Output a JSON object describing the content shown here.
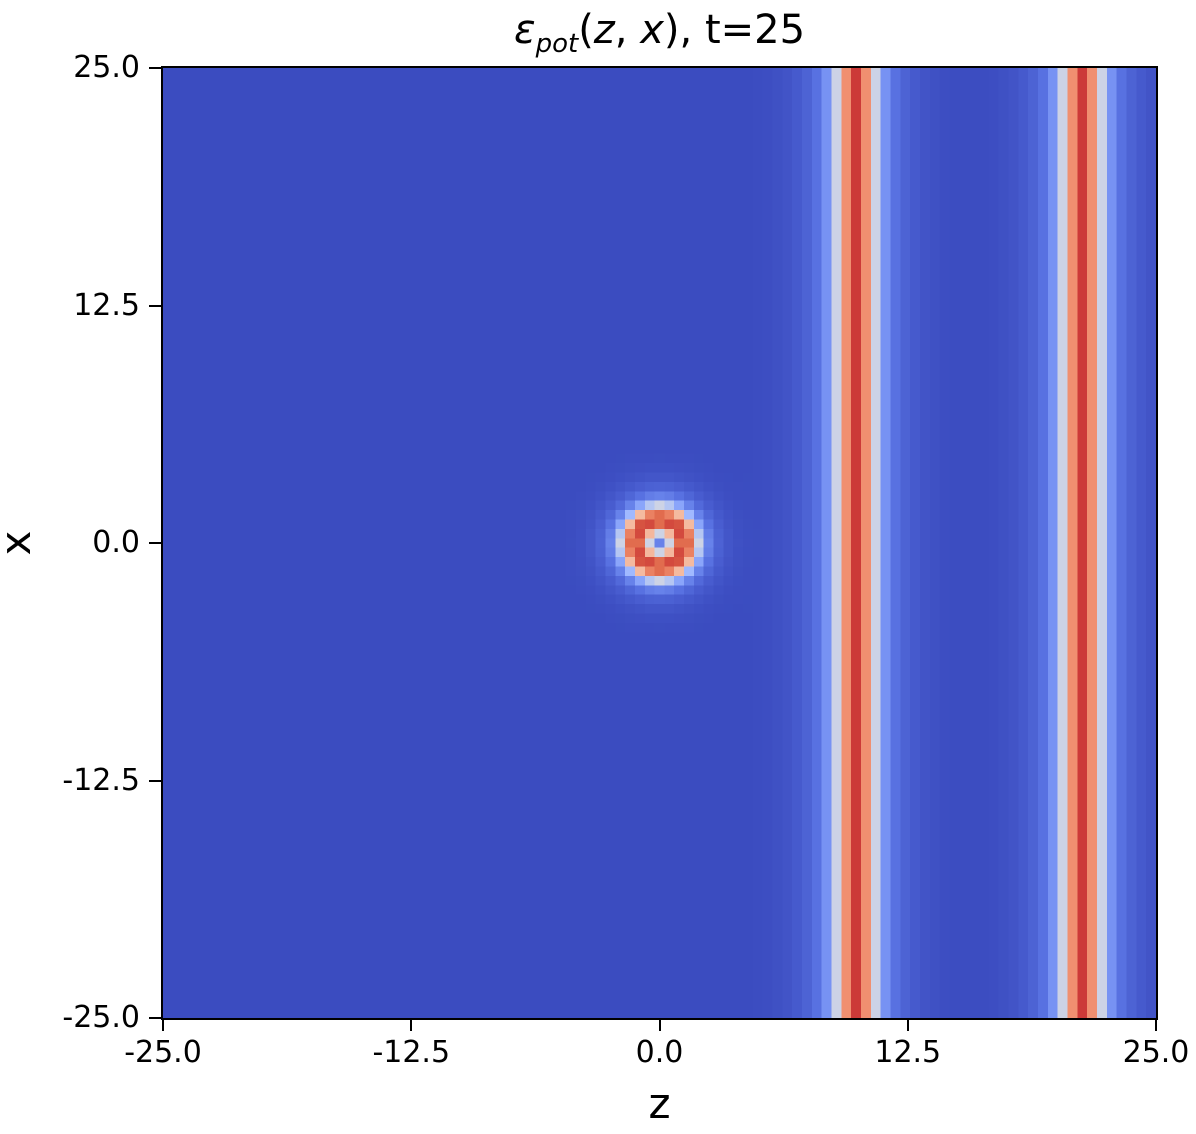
{
  "figure": {
    "background": "#ffffff",
    "frame_color": "#000000",
    "text_color": "#000000"
  },
  "chart_data": {
    "type": "heatmap",
    "title": "εpot(z, x), t=25",
    "title_parts": {
      "symbol": "ε",
      "subscript": "pot",
      "args_open": "(",
      "var_z": "z",
      "args_sep": ", ",
      "var_x": "x",
      "args_close": ")",
      "suffix": ", t=25"
    },
    "xlabel": "z",
    "ylabel": "x",
    "xlim": [
      -25,
      25
    ],
    "ylim": [
      -25,
      25
    ],
    "x_tick_values": [
      -25,
      -12.5,
      0,
      12.5,
      25
    ],
    "x_tick_labels": [
      "-25.0",
      "-12.5",
      "0.0",
      "12.5",
      "25.0"
    ],
    "y_tick_values": [
      25,
      12.5,
      0,
      -12.5,
      -25
    ],
    "y_tick_labels": [
      "25.0",
      "12.5",
      "0.0",
      "-12.5",
      "-25.0"
    ],
    "colormap": "coolwarm",
    "colormap_stops": [
      [
        0.0,
        "#3b4cc0"
      ],
      [
        0.125,
        "#5871e1"
      ],
      [
        0.25,
        "#7b97f6"
      ],
      [
        0.375,
        "#9fb9ff"
      ],
      [
        0.5,
        "#dddcdc"
      ],
      [
        0.625,
        "#f4bca2"
      ],
      [
        0.75,
        "#f4997a"
      ],
      [
        0.875,
        "#de6547"
      ],
      [
        1.0,
        "#b40426"
      ]
    ],
    "grid_resolution": 101,
    "background_value": 0.0,
    "peak_value": 0.93,
    "features": [
      {
        "kind": "ring",
        "z": 0,
        "x": 0,
        "radius": 1.25,
        "narrow_width": 0.8,
        "narrow_amp": 0.73,
        "broad_width": 1.7,
        "broad_amp": 0.2
      },
      {
        "kind": "vertical-stripe",
        "z": 10.0,
        "narrow_width": 1.05,
        "narrow_amp": 0.73,
        "broad_width": 2.5,
        "broad_amp": 0.2
      },
      {
        "kind": "vertical-stripe",
        "z": 21.5,
        "narrow_width": 1.05,
        "narrow_amp": 0.73,
        "broad_width": 2.5,
        "broad_amp": 0.2
      }
    ]
  }
}
